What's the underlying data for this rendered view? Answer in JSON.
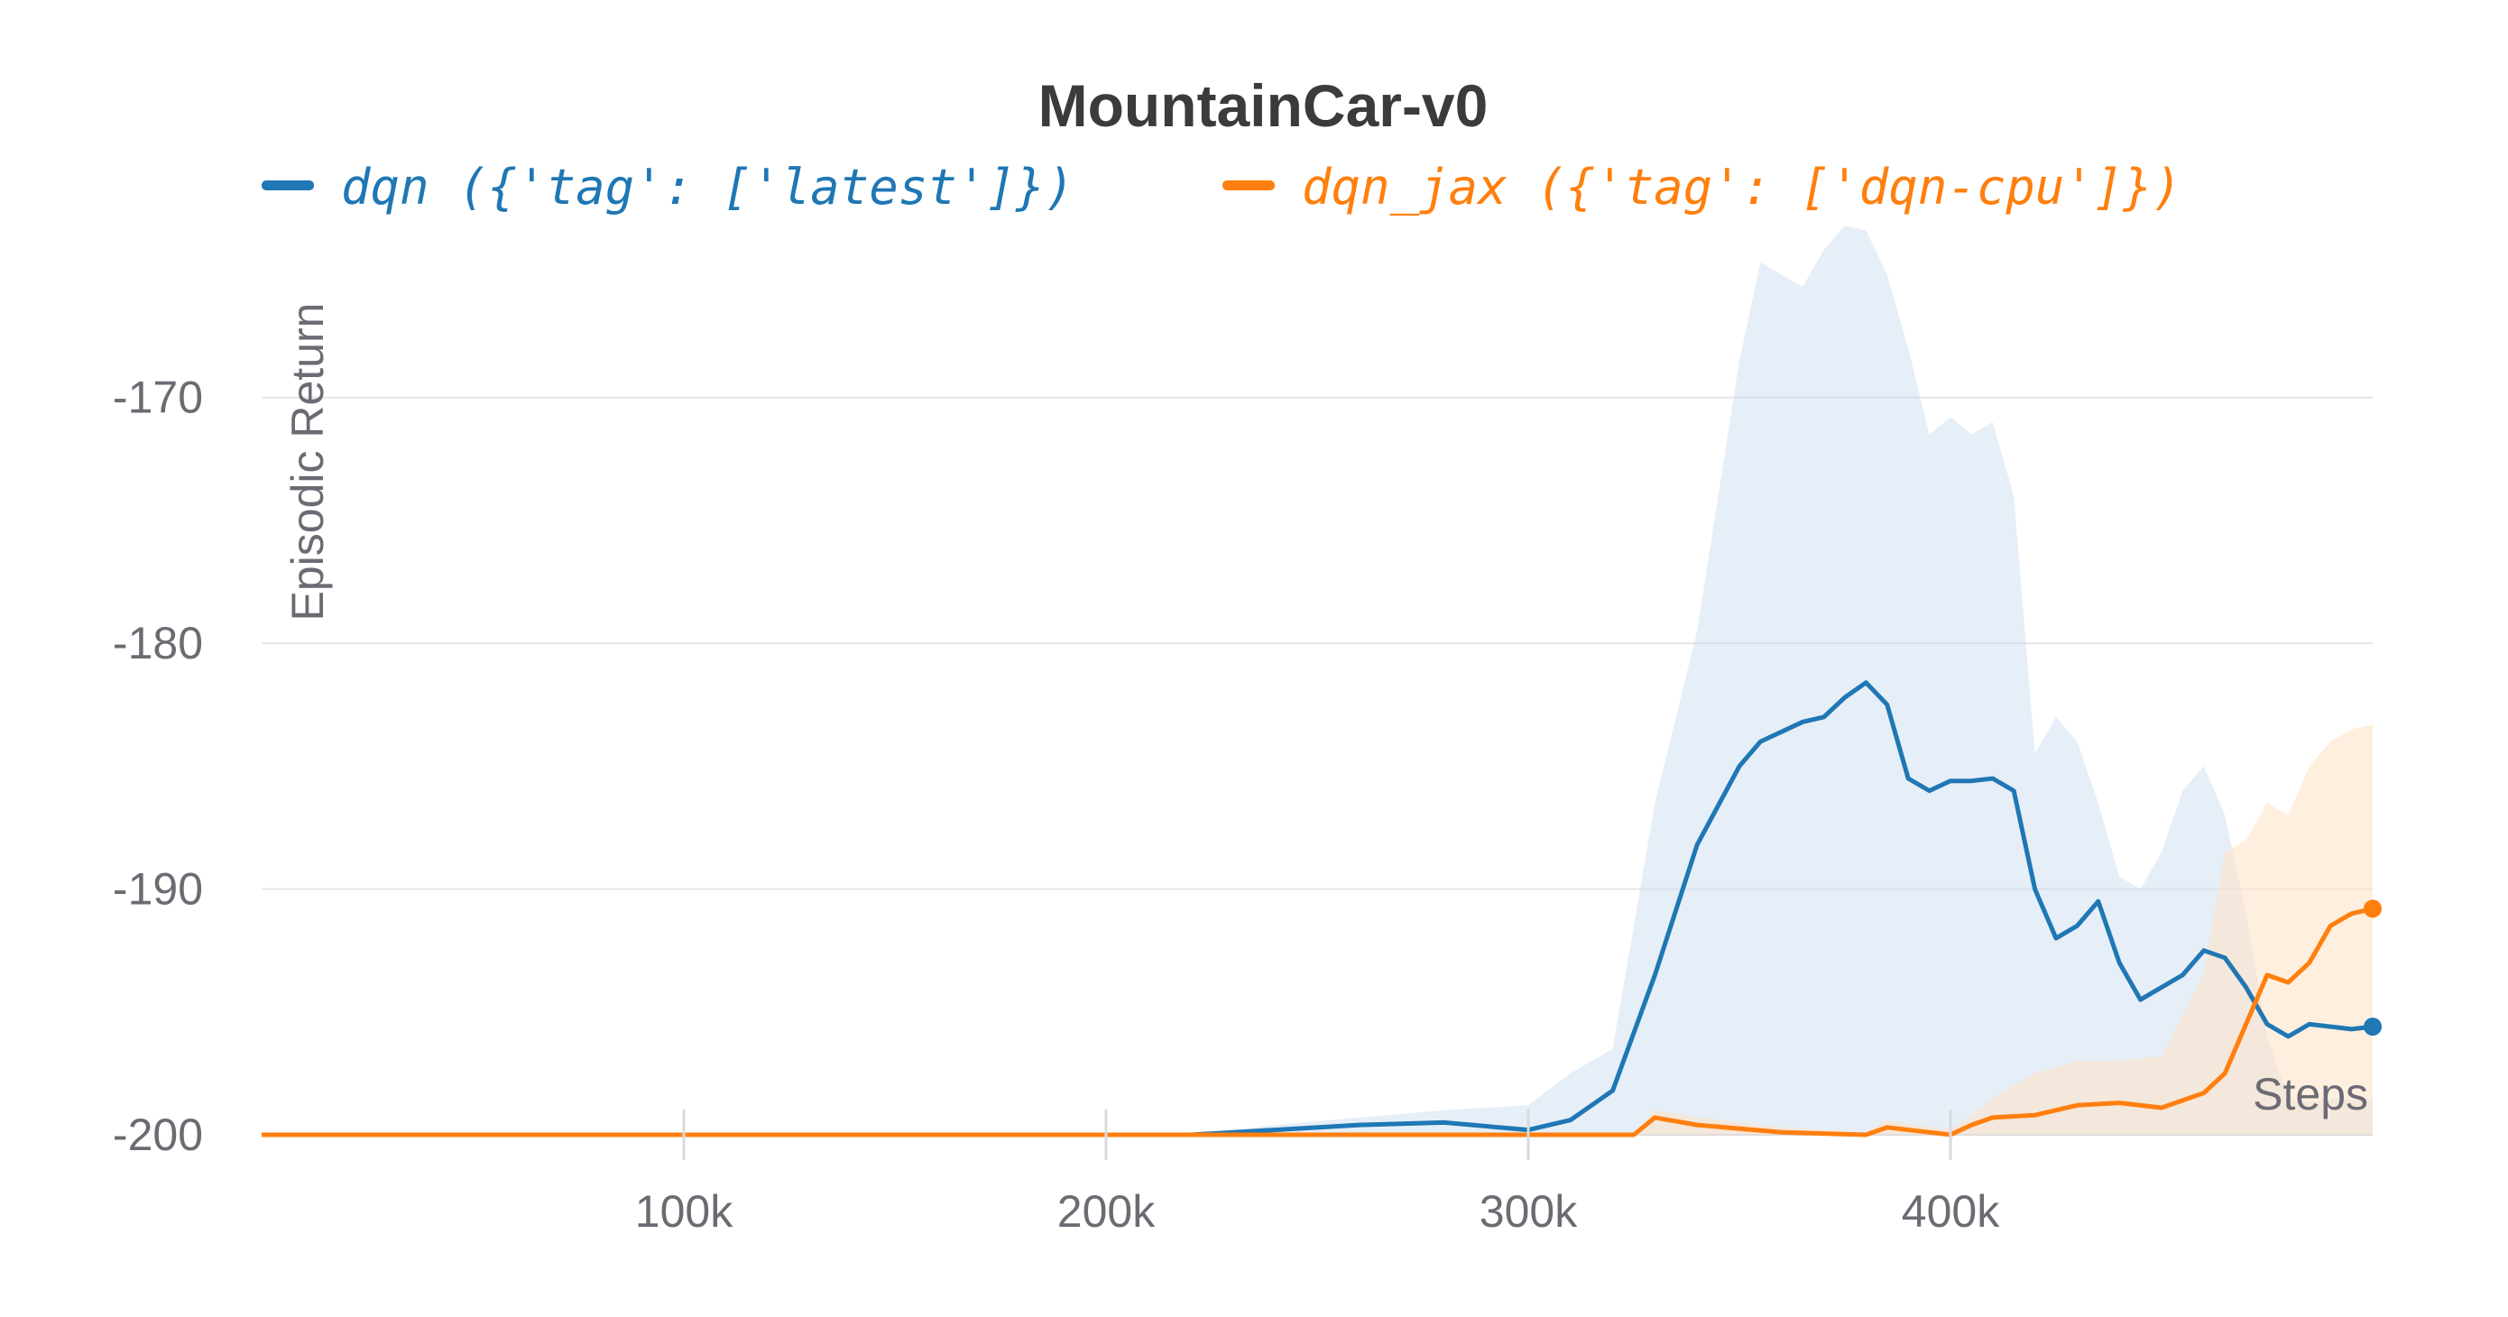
{
  "chart_data": {
    "type": "line",
    "title": "MountainCar-v0",
    "xlabel": "Steps",
    "ylabel": "Episodic Return",
    "xlim": [
      0,
      500000
    ],
    "ylim": [
      -200,
      -163
    ],
    "y_ticks": [
      -170,
      -180,
      -190,
      -200
    ],
    "y_tick_labels": [
      "-170",
      "-180",
      "-190",
      "-200"
    ],
    "x_ticks": [
      100000,
      200000,
      300000,
      400000
    ],
    "x_tick_labels": [
      "100k",
      "200k",
      "300k",
      "400k"
    ],
    "grid": true,
    "legend_position": "top",
    "series": [
      {
        "name": "dqn ({'tag': ['latest']})",
        "color": "#1f77b4",
        "band_color": "#c8daee",
        "x": [
          0,
          220000,
          240000,
          260000,
          280000,
          300000,
          310000,
          320000,
          330000,
          340000,
          350000,
          355000,
          365000,
          370000,
          375000,
          380000,
          385000,
          390000,
          395000,
          400000,
          405000,
          410000,
          415000,
          420000,
          425000,
          430000,
          435000,
          440000,
          445000,
          450000,
          455000,
          460000,
          465000,
          470000,
          475000,
          480000,
          485000,
          490000,
          495000,
          500000
        ],
        "y": [
          -200,
          -200,
          -199.8,
          -199.6,
          -199.5,
          -199.8,
          -199.4,
          -198.2,
          -193.5,
          -188.2,
          -185.0,
          -184.0,
          -183.2,
          -183.0,
          -182.2,
          -181.6,
          -182.5,
          -185.5,
          -186.0,
          -185.6,
          -185.6,
          -185.5,
          -186.0,
          -190.0,
          -192.0,
          -191.5,
          -190.5,
          -193.0,
          -194.5,
          -194.0,
          -193.5,
          -192.5,
          -192.8,
          -194.0,
          -195.5,
          -196.0,
          -195.5,
          -195.6,
          -195.7,
          -195.6
        ],
        "y_lower": [
          -200,
          -200,
          -200,
          -200,
          -200,
          -200,
          -200,
          -200,
          -200,
          -200,
          -200,
          -200,
          -200,
          -200,
          -200,
          -200,
          -200,
          -200,
          -200,
          -200,
          -200,
          -200,
          -200,
          -200,
          -200,
          -200,
          -200,
          -200,
          -200,
          -200,
          -200,
          -200,
          -200,
          -200,
          -200,
          -200,
          -200,
          -200,
          -200,
          -200
        ],
        "y_upper": [
          -200,
          -200,
          -199.6,
          -199.3,
          -199.0,
          -198.8,
          -197.5,
          -196.5,
          -186.5,
          -179.5,
          -168.5,
          -164.5,
          -165.5,
          -164.0,
          -163.0,
          -163.2,
          -165.0,
          -168.0,
          -171.5,
          -170.8,
          -171.5,
          -171.0,
          -174.0,
          -184.5,
          -183.0,
          -184.0,
          -186.5,
          -189.5,
          -190.0,
          -188.5,
          -186.0,
          -185.0,
          -187.0,
          -191.0,
          -196.0,
          -198.5,
          -198.7,
          -198.5,
          -198.6,
          -198.5
        ]
      },
      {
        "name": "dqn_jax ({'tag': ['dqn-cpu']})",
        "color": "#ff7f0e",
        "band_color": "#ffe1c4",
        "x": [
          0,
          325000,
          330000,
          340000,
          360000,
          380000,
          385000,
          400000,
          405000,
          410000,
          420000,
          430000,
          440000,
          450000,
          460000,
          465000,
          470000,
          475000,
          480000,
          485000,
          490000,
          495000,
          500000
        ],
        "y": [
          -200,
          -200,
          -199.3,
          -199.6,
          -199.9,
          -200,
          -199.7,
          -200,
          -199.6,
          -199.3,
          -199.2,
          -198.8,
          -198.7,
          -198.9,
          -198.3,
          -197.5,
          -195.5,
          -193.5,
          -193.8,
          -193.0,
          -191.5,
          -191.0,
          -190.8
        ],
        "y_lower": [
          -200,
          -200,
          -200,
          -200,
          -200,
          -200,
          -200,
          -200,
          -200,
          -200,
          -200,
          -200,
          -200,
          -200,
          -200,
          -200,
          -200,
          -200,
          -200,
          -200,
          -200,
          -200,
          -200
        ],
        "y_upper": [
          -200,
          -200,
          -199.0,
          -199.3,
          -199.7,
          -199.9,
          -199.4,
          -199.8,
          -199.2,
          -198.5,
          -197.5,
          -197.0,
          -197.0,
          -196.8,
          -193.5,
          -188.5,
          -188.0,
          -186.5,
          -187.0,
          -185.0,
          -184.0,
          -183.5,
          -183.3
        ]
      }
    ]
  }
}
